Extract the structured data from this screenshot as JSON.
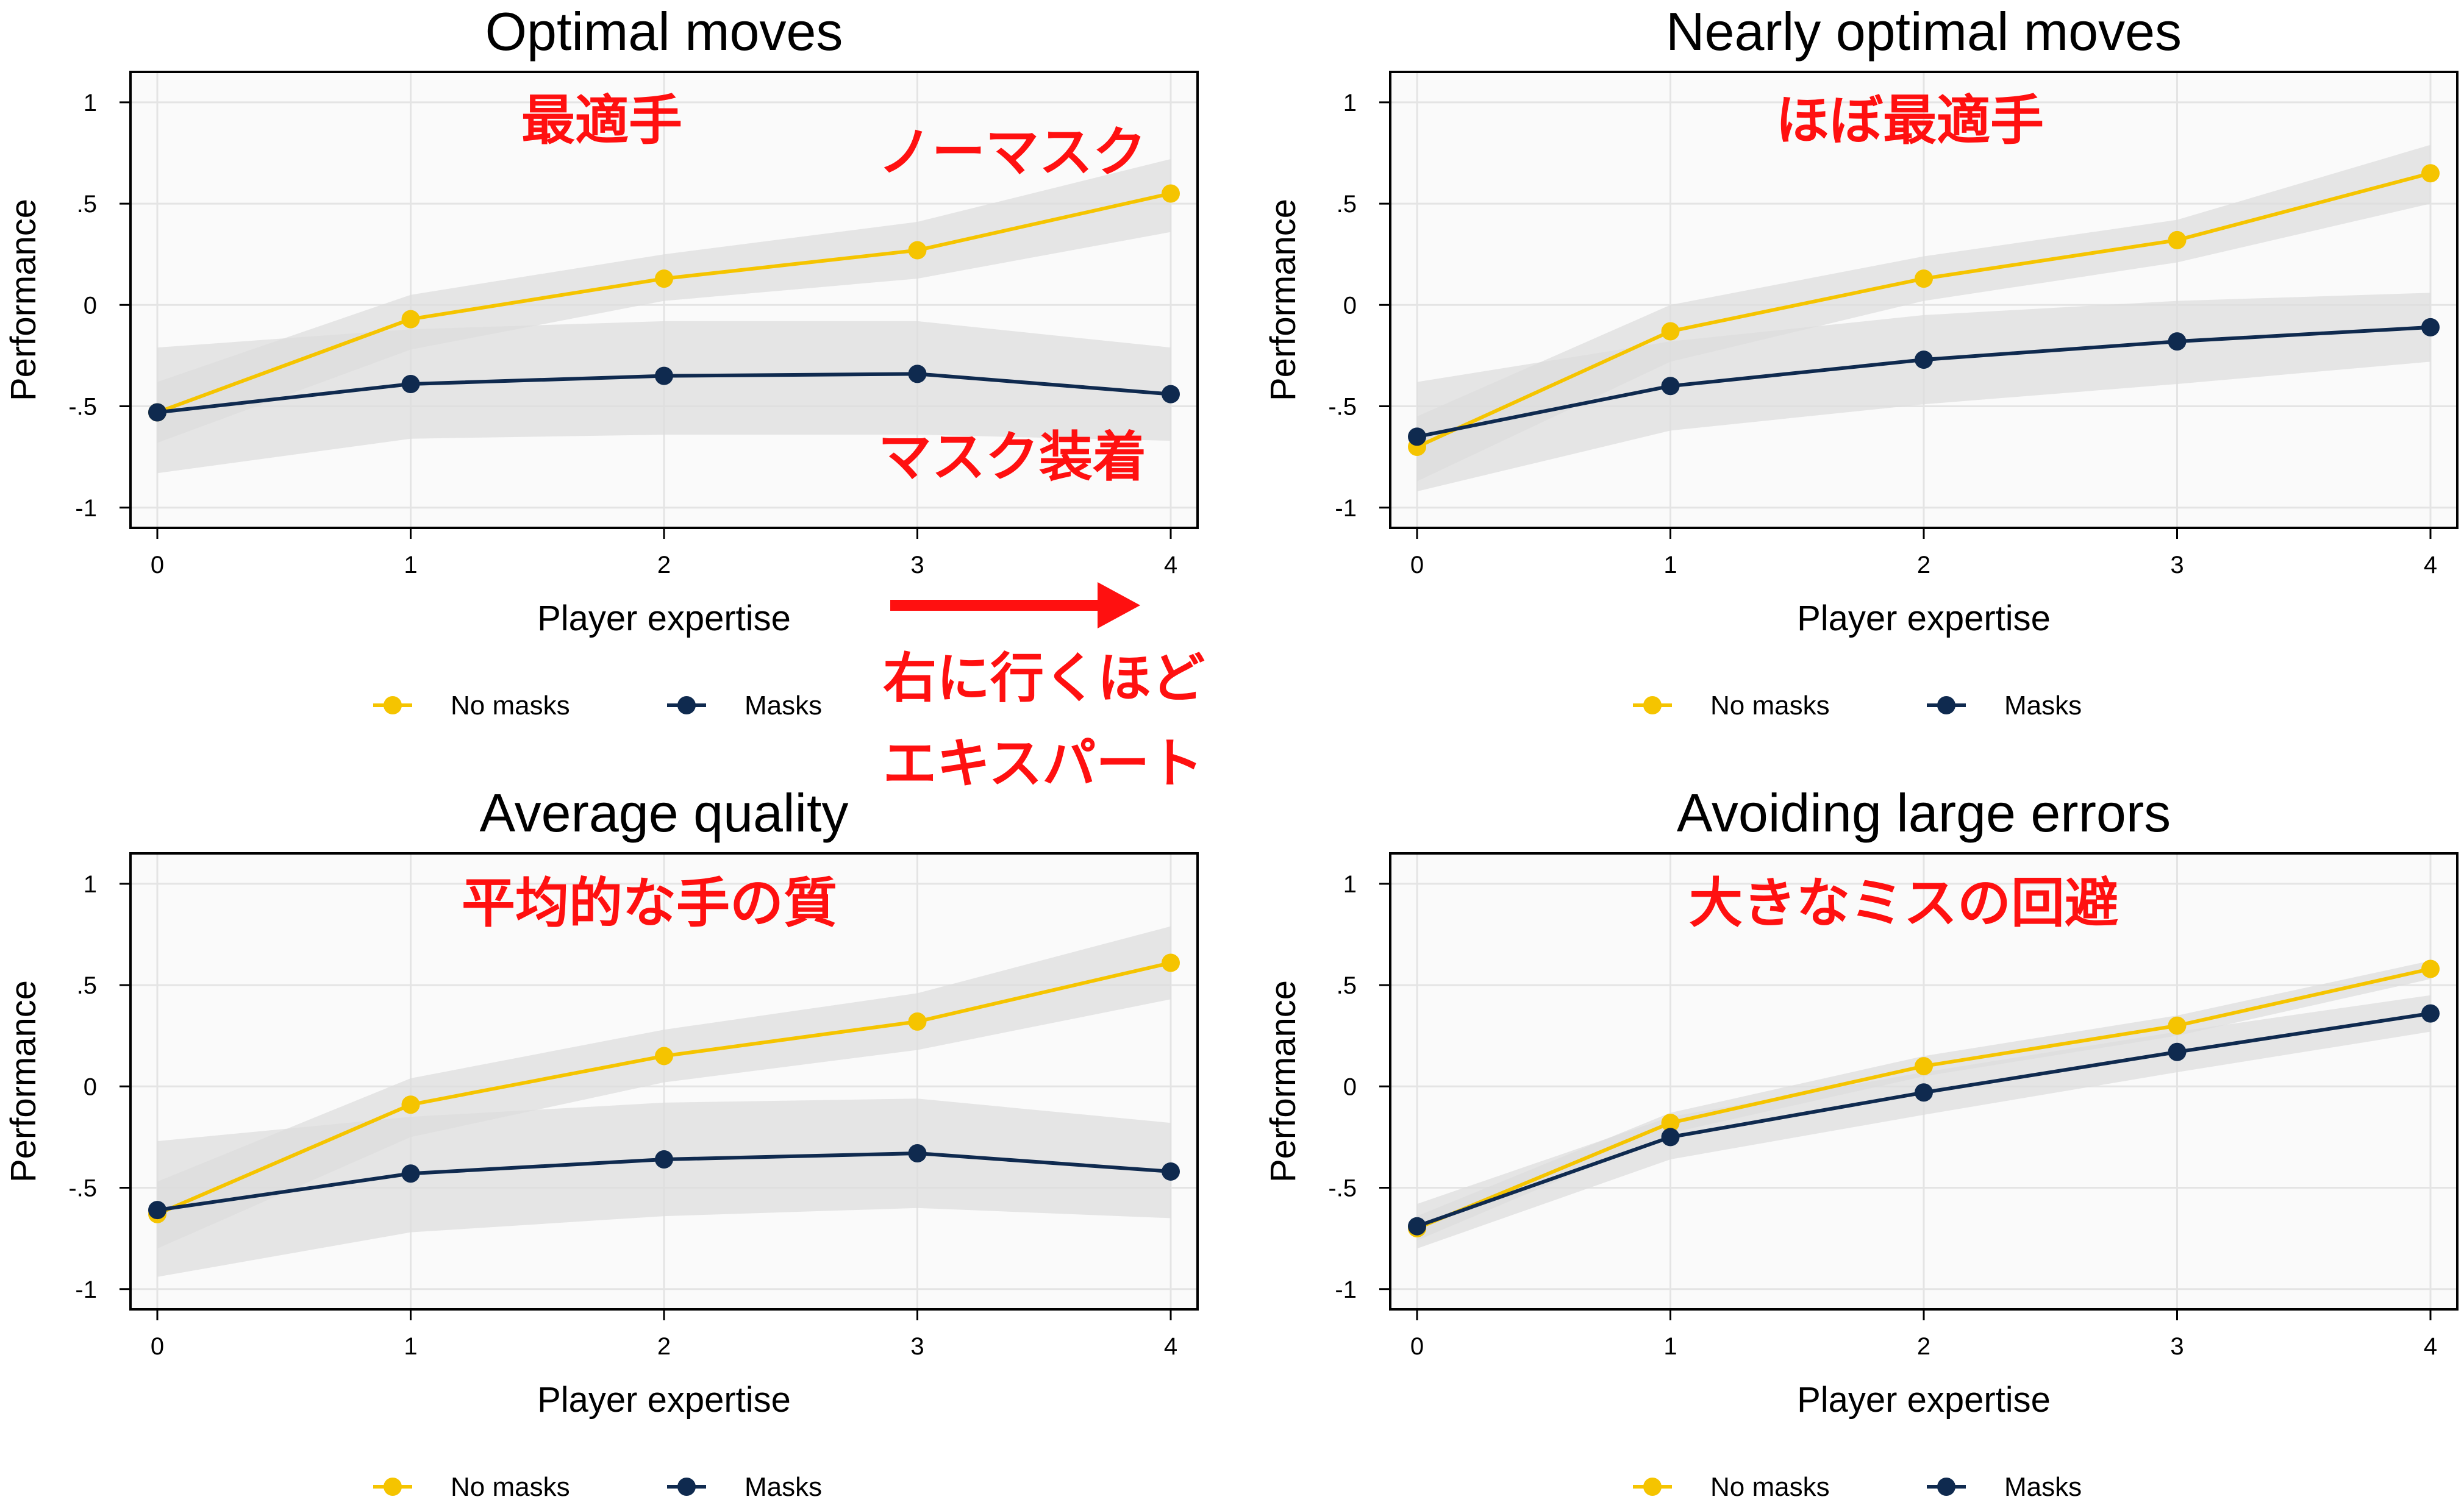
{
  "colors": {
    "no_masks": "#f5c400",
    "masks": "#0f2a4f",
    "band": "#dcdcdc",
    "plot_bg": "#fafafa",
    "grid": "#e4e4e4",
    "annotation": "#ff1010"
  },
  "legend": {
    "no_masks": "No masks",
    "masks": "Masks"
  },
  "chart_data": [
    {
      "type": "line",
      "title": "Optimal moves",
      "xlabel": "Player expertise",
      "ylabel": "Performance",
      "x": [
        0,
        1,
        2,
        3,
        4
      ],
      "xticks": [
        "0",
        "1",
        "2",
        "3",
        "4"
      ],
      "ylim": [
        -1.1,
        1.15
      ],
      "yticks": [
        -1,
        -0.5,
        0,
        0.5,
        1
      ],
      "ytick_labels": [
        "-1",
        "-.5",
        "0",
        ".5",
        "1"
      ],
      "grid": true,
      "legend_position": "bottom",
      "series": [
        {
          "name": "No masks",
          "values": [
            -0.53,
            -0.07,
            0.13,
            0.27,
            0.55
          ],
          "ci_lower": [
            -0.68,
            -0.22,
            0.02,
            0.13,
            0.36
          ],
          "ci_upper": [
            -0.38,
            0.05,
            0.25,
            0.41,
            0.72
          ]
        },
        {
          "name": "Masks",
          "values": [
            -0.53,
            -0.39,
            -0.35,
            -0.34,
            -0.44
          ],
          "ci_lower": [
            -0.83,
            -0.66,
            -0.64,
            -0.64,
            -0.67
          ],
          "ci_upper": [
            -0.21,
            -0.12,
            -0.08,
            -0.08,
            -0.21
          ]
        }
      ],
      "annotations": [
        "最適手",
        "ノーマスク",
        "マスク装着"
      ]
    },
    {
      "type": "line",
      "title": "Nearly optimal moves",
      "xlabel": "Player expertise",
      "ylabel": "Performance",
      "x": [
        0,
        1,
        2,
        3,
        4
      ],
      "xticks": [
        "0",
        "1",
        "2",
        "3",
        "4"
      ],
      "ylim": [
        -1.1,
        1.15
      ],
      "yticks": [
        -1,
        -0.5,
        0,
        0.5,
        1
      ],
      "ytick_labels": [
        "-1",
        "-.5",
        "0",
        ".5",
        "1"
      ],
      "grid": true,
      "legend_position": "bottom",
      "series": [
        {
          "name": "No masks",
          "values": [
            -0.7,
            -0.13,
            0.13,
            0.32,
            0.65
          ],
          "ci_lower": [
            -0.87,
            -0.28,
            0.02,
            0.21,
            0.5
          ],
          "ci_upper": [
            -0.55,
            0.0,
            0.24,
            0.42,
            0.79
          ]
        },
        {
          "name": "Masks",
          "values": [
            -0.65,
            -0.4,
            -0.27,
            -0.18,
            -0.11
          ],
          "ci_lower": [
            -0.92,
            -0.62,
            -0.49,
            -0.39,
            -0.28
          ],
          "ci_upper": [
            -0.38,
            -0.18,
            -0.05,
            0.02,
            0.06
          ]
        }
      ],
      "annotations": [
        "ほぼ最適手"
      ]
    },
    {
      "type": "line",
      "title": "Average quality",
      "xlabel": "Player expertise",
      "ylabel": "Performance",
      "x": [
        0,
        1,
        2,
        3,
        4
      ],
      "xticks": [
        "0",
        "1",
        "2",
        "3",
        "4"
      ],
      "ylim": [
        -1.1,
        1.15
      ],
      "yticks": [
        -1,
        -0.5,
        0,
        0.5,
        1
      ],
      "ytick_labels": [
        "-1",
        "-.5",
        "0",
        ".5",
        "1"
      ],
      "grid": true,
      "legend_position": "bottom",
      "series": [
        {
          "name": "No masks",
          "values": [
            -0.63,
            -0.09,
            0.15,
            0.32,
            0.61
          ],
          "ci_lower": [
            -0.8,
            -0.25,
            0.02,
            0.18,
            0.43
          ],
          "ci_upper": [
            -0.47,
            0.04,
            0.28,
            0.46,
            0.79
          ]
        },
        {
          "name": "Masks",
          "values": [
            -0.61,
            -0.43,
            -0.36,
            -0.33,
            -0.42
          ],
          "ci_lower": [
            -0.94,
            -0.72,
            -0.64,
            -0.6,
            -0.65
          ],
          "ci_upper": [
            -0.27,
            -0.15,
            -0.08,
            -0.06,
            -0.18
          ]
        }
      ],
      "annotations": [
        "平均的な手の質"
      ]
    },
    {
      "type": "line",
      "title": "Avoiding large errors",
      "xlabel": "Player expertise",
      "ylabel": "Performance",
      "x": [
        0,
        1,
        2,
        3,
        4
      ],
      "xticks": [
        "0",
        "1",
        "2",
        "3",
        "4"
      ],
      "ylim": [
        -1.1,
        1.15
      ],
      "yticks": [
        -1,
        -0.5,
        0,
        0.5,
        1
      ],
      "ytick_labels": [
        "-1",
        "-.5",
        "0",
        ".5",
        "1"
      ],
      "grid": true,
      "legend_position": "bottom",
      "series": [
        {
          "name": "No masks",
          "values": [
            -0.7,
            -0.18,
            0.1,
            0.3,
            0.58
          ],
          "ci_lower": [
            -0.76,
            -0.23,
            0.05,
            0.25,
            0.53
          ],
          "ci_upper": [
            -0.64,
            -0.13,
            0.15,
            0.35,
            0.62
          ]
        },
        {
          "name": "Masks",
          "values": [
            -0.69,
            -0.25,
            -0.03,
            0.17,
            0.36
          ],
          "ci_lower": [
            -0.8,
            -0.36,
            -0.14,
            0.07,
            0.27
          ],
          "ci_upper": [
            -0.58,
            -0.15,
            0.07,
            0.27,
            0.45
          ]
        }
      ],
      "annotations": [
        "大きなミスの回避"
      ]
    }
  ],
  "center_annotation": {
    "line1": "右に行くほど",
    "line2": "エキスパート"
  }
}
